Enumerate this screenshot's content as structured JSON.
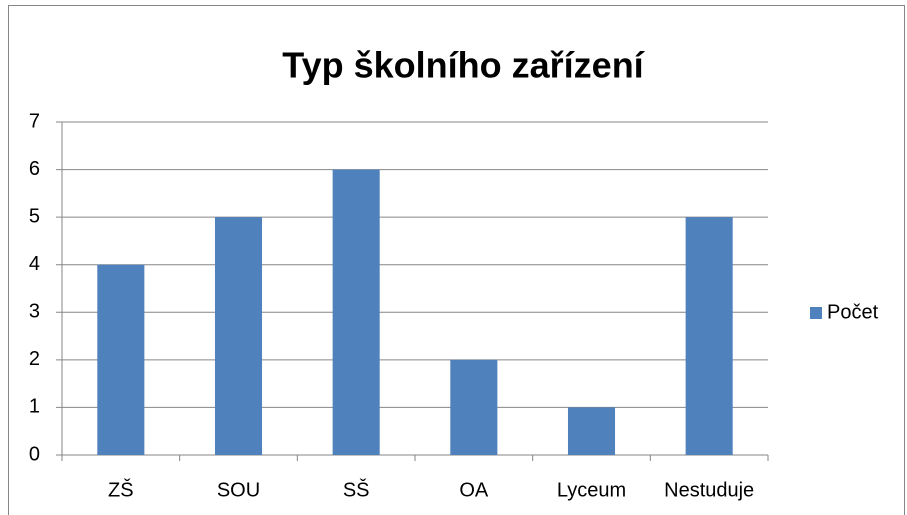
{
  "chart_data": {
    "type": "bar",
    "title": "Typ školního zařízení",
    "categories": [
      "ZŠ",
      "SOU",
      "SŠ",
      "OA",
      "Lyceum",
      "Nestuduje"
    ],
    "series": [
      {
        "name": "Počet",
        "color": "#4f81bd",
        "values": [
          4,
          5,
          6,
          2,
          1,
          5
        ]
      }
    ],
    "ylim": [
      0,
      7
    ],
    "yticks": [
      0,
      1,
      2,
      3,
      4,
      5,
      6,
      7
    ],
    "grid": true,
    "legend": "right"
  }
}
